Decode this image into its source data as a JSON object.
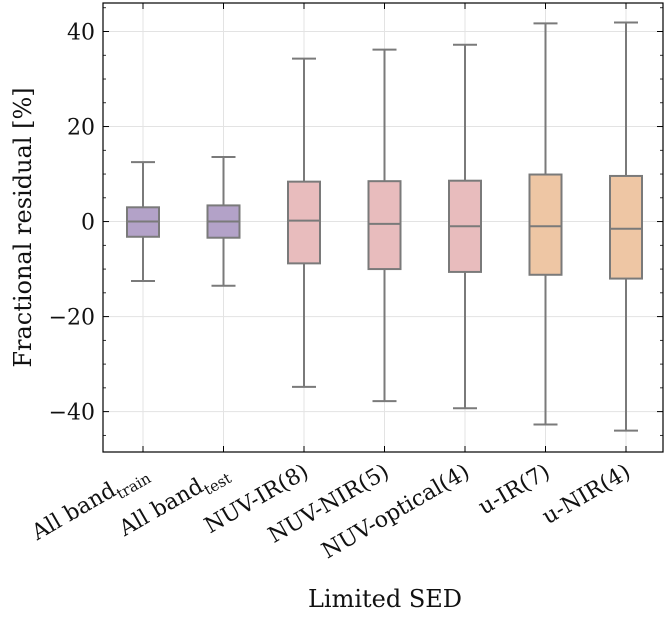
{
  "chart_data": {
    "type": "box",
    "title": "",
    "xlabel": "Limited SED",
    "ylabel": "Fractional residual [%]",
    "ylim": [
      -48.5,
      46
    ],
    "yticks": [
      -40,
      -20,
      0,
      20,
      40
    ],
    "ytick_labels": [
      "−40",
      "−20",
      "0",
      "20",
      "40"
    ],
    "grid": true,
    "categories": [
      {
        "label": "All band",
        "sub": "train"
      },
      {
        "label": "All band",
        "sub": "test"
      },
      {
        "label": "NUV-IR(8)",
        "sub": ""
      },
      {
        "label": "NUV-NIR(5)",
        "sub": ""
      },
      {
        "label": "NUV-optical(4)",
        "sub": ""
      },
      {
        "label": "u-IR(7)",
        "sub": ""
      },
      {
        "label": "u-NIR(4)",
        "sub": ""
      }
    ],
    "boxes": [
      {
        "whisker_low": -12.5,
        "q1": -3.2,
        "median": 0.0,
        "q3": 3.0,
        "whisker_high": 12.5,
        "color": "#b3a2c8"
      },
      {
        "whisker_low": -13.5,
        "q1": -3.4,
        "median": 0.0,
        "q3": 3.4,
        "whisker_high": 13.6,
        "color": "#b3a2c8"
      },
      {
        "whisker_low": -34.8,
        "q1": -8.8,
        "median": 0.2,
        "q3": 8.4,
        "whisker_high": 34.3,
        "color": "#e8bcbd"
      },
      {
        "whisker_low": -37.8,
        "q1": -10.0,
        "median": -0.5,
        "q3": 8.5,
        "whisker_high": 36.2,
        "color": "#e8bcbd"
      },
      {
        "whisker_low": -39.3,
        "q1": -10.6,
        "median": -1.0,
        "q3": 8.6,
        "whisker_high": 37.2,
        "color": "#e8bcbd"
      },
      {
        "whisker_low": -42.7,
        "q1": -11.2,
        "median": -1.0,
        "q3": 9.9,
        "whisker_high": 41.7,
        "color": "#eec6a4"
      },
      {
        "whisker_low": -44.0,
        "q1": -12.0,
        "median": -1.5,
        "q3": 9.6,
        "whisker_high": 41.9,
        "color": "#eec6a4"
      }
    ],
    "line_color": "#7a7a7a"
  }
}
